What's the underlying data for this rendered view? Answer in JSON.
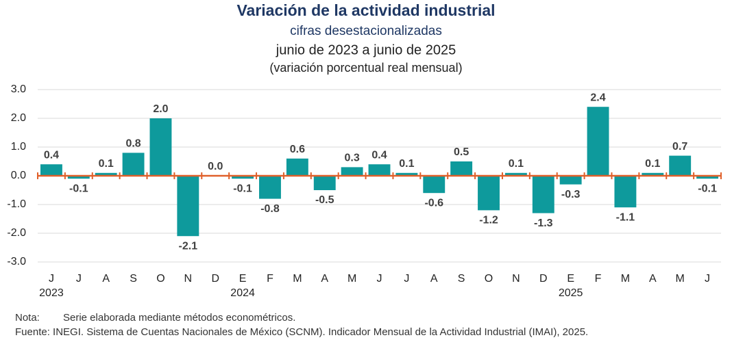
{
  "chart_data": {
    "type": "bar",
    "title": "Variación de la actividad industrial",
    "subtitle": "cifras desestacionalizadas",
    "period": "junio de 2023 a junio de 2025",
    "unit_note": "(variación porcentual real mensual)",
    "categories": [
      "J",
      "J",
      "A",
      "S",
      "O",
      "N",
      "D",
      "E",
      "F",
      "M",
      "A",
      "M",
      "J",
      "J",
      "A",
      "S",
      "O",
      "N",
      "D",
      "E",
      "F",
      "M",
      "A",
      "M",
      "J"
    ],
    "category_years": [
      "2023",
      null,
      null,
      null,
      null,
      null,
      null,
      "2024",
      null,
      null,
      null,
      null,
      null,
      null,
      null,
      null,
      null,
      null,
      null,
      "2025",
      null,
      null,
      null,
      null,
      null
    ],
    "values": [
      0.4,
      -0.1,
      0.1,
      0.8,
      2.0,
      -2.1,
      0.0,
      -0.1,
      -0.8,
      0.6,
      -0.5,
      0.3,
      0.4,
      0.1,
      -0.6,
      0.5,
      -1.2,
      0.1,
      -1.3,
      -0.3,
      2.4,
      -1.1,
      0.1,
      0.7,
      -0.1
    ],
    "value_labels": [
      "0.4",
      "-0.1",
      "0.1",
      "0.8",
      "2.0",
      "-2.1",
      "0.0",
      "-0.1",
      "-0.8",
      "0.6",
      "-0.5",
      "0.3",
      "0.4",
      "0.1",
      "-0.6",
      "0.5",
      "-1.2",
      "0.1",
      "-1.3",
      "-0.3",
      "2.4",
      "-1.1",
      "0.1",
      "0.7",
      "-0.1"
    ],
    "color": "#0e9a9c",
    "zero_line_color": "#e0602a",
    "ylim": [
      -3,
      3
    ],
    "yticks": [
      {
        "value": -3,
        "label": "-3.0"
      },
      {
        "value": -2,
        "label": "-2.0"
      },
      {
        "value": -1,
        "label": "-1.0"
      },
      {
        "value": 0,
        "label": "0.0"
      },
      {
        "value": 1,
        "label": "1.0"
      },
      {
        "value": 2,
        "label": "2.0"
      },
      {
        "value": 3,
        "label": "3.0"
      }
    ],
    "grid": true,
    "note_label": "Nota:",
    "note": "Serie elaborada mediante métodos econométricos.",
    "source": "Fuente: INEGI. Sistema de Cuentas Nacionales de México (SCNM). Indicador Mensual de la Actividad Industrial (IMAI), 2025."
  }
}
